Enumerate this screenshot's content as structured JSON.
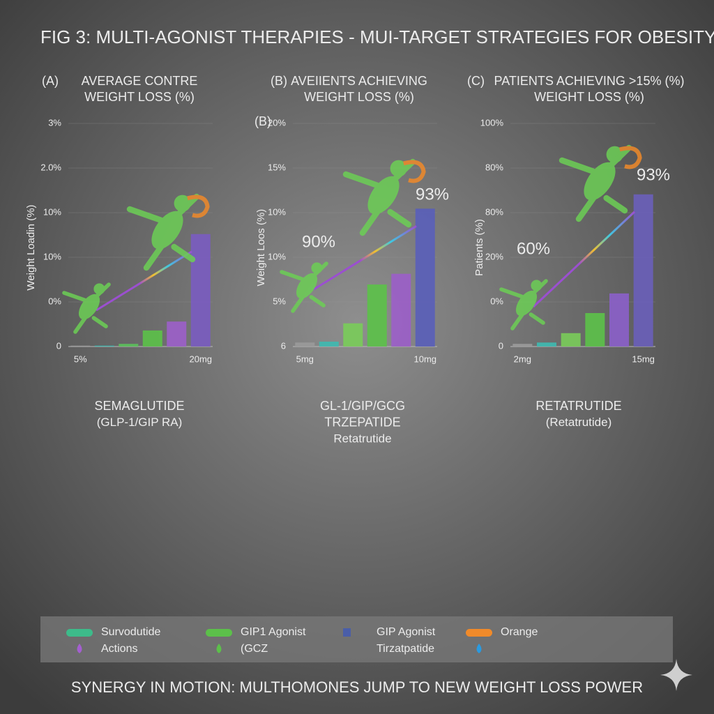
{
  "title": "FIG 3:  MULTI-AGONIST THERAPIES - MUI-TARGET STRATEGIES FOR OBESITY",
  "footer": "SYNERGY IN MOTION: MULTHOMONES JUMP TO NEW WEIGHT LOSS POWER",
  "legend": [
    {
      "label": "Survodutide",
      "color": "#3dbb8a",
      "shape": "pill"
    },
    {
      "label": "Actions",
      "color": "#a45fd0",
      "shape": "drop"
    },
    {
      "label": "GIP1 Agonist",
      "color": "#5cc04a",
      "shape": "pill"
    },
    {
      "label": "(GCZ",
      "color": "#5cc04a",
      "shape": "drop"
    },
    {
      "label": "GIP Agonist",
      "color": "#4a5ea8",
      "shape": "square"
    },
    {
      "label": "Tirzatpatide"
    },
    {
      "label": "Orange",
      "color": "#f08a2a",
      "shape": "pill"
    },
    {
      "color": "#2a9ae0",
      "shape": "drop"
    }
  ],
  "chart_data": [
    {
      "type": "bar",
      "panel": "(A)",
      "title": [
        "AVERAGE CONTRE",
        "WEIGHT LOSS (%)"
      ],
      "y_label": "Weight Loadin (%)",
      "categories": [
        "5%",
        null,
        null,
        null,
        null,
        "20mg"
      ],
      "values": [
        0.02,
        0.02,
        0.06,
        0.36,
        0.56,
        2.52
      ],
      "colors": [
        "#9a9a9a",
        "#3fb8b0",
        "#5cbf5c",
        "#5cc04a",
        "#9b5fc8",
        "#7a5cbf"
      ],
      "ylim": [
        0,
        5
      ],
      "yticks": [
        0,
        {
          "value": 1,
          "label": "0%"
        },
        {
          "value": 2,
          "label": "10%"
        },
        {
          "value": 3,
          "label": "10%"
        },
        {
          "value": 4,
          "label": "2.0%"
        },
        {
          "value": 5,
          "label": "3%"
        }
      ],
      "drug": [
        "SEMAGLUTIDE",
        "(GLP-1/GIP RA)"
      ],
      "annotations": []
    },
    {
      "type": "bar",
      "panel": "(B)",
      "sublabel": "(B)",
      "title": [
        "AVEIIENTS ACHIEVING",
        "WEIGHT LOSS (%)"
      ],
      "y_label": "Weight Loos (%)",
      "categories": [
        "5mg",
        null,
        null,
        null,
        null,
        "10mg"
      ],
      "values": [
        0.09,
        0.11,
        0.52,
        1.39,
        1.63,
        3.09
      ],
      "colors": [
        "#9a9a9a",
        "#3fb8b0",
        "#7acb5a",
        "#5cc04a",
        "#9b5fc8",
        "#5a5fb8"
      ],
      "ylim": [
        0,
        5
      ],
      "yticks": [
        {
          "value": 0,
          "label": "6"
        },
        {
          "value": 1,
          "label": "5%"
        },
        {
          "value": 2,
          "label": "10%"
        },
        {
          "value": 3,
          "label": "10%"
        },
        {
          "value": 4,
          "label": "15%"
        },
        {
          "value": 5,
          "label": "20%"
        }
      ],
      "drug": [
        "GL-1/GIP/GCG",
        "TRZEPATIDE",
        "Retatrutide"
      ],
      "annotations": [
        "90%",
        "93%"
      ]
    },
    {
      "type": "bar",
      "panel": "(C)",
      "title": [
        "PATIENTS ACHIEVING >15% (%)",
        "WEIGHT LOSS (%)"
      ],
      "y_label": "Patients (%)",
      "categories": [
        "2mg",
        null,
        null,
        null,
        null,
        "15mg"
      ],
      "values": [
        0.06,
        0.09,
        0.3,
        0.75,
        1.19,
        3.41
      ],
      "colors": [
        "#9a9a9a",
        "#3fb8b0",
        "#7acb5a",
        "#5cc04a",
        "#8a5fc8",
        "#6a5fb8"
      ],
      "ylim": [
        0,
        5
      ],
      "yticks": [
        0,
        {
          "value": 1,
          "label": "0%"
        },
        {
          "value": 2,
          "label": "20%"
        },
        {
          "value": 3,
          "label": "80%"
        },
        {
          "value": 4,
          "label": "80%"
        },
        {
          "value": 5,
          "label": "100%"
        }
      ],
      "drug": [
        "RETATRUTIDE",
        "(Retatrutide)"
      ],
      "annotations": [
        "60%",
        "93%"
      ]
    }
  ]
}
